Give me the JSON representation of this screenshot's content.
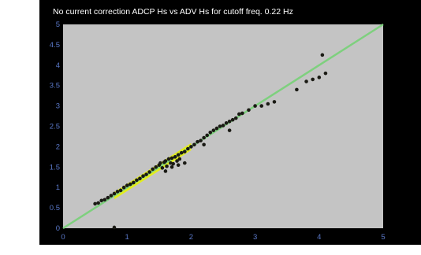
{
  "chart_data": {
    "type": "scatter",
    "title": "No current correction ADCP Hs vs ADV Hs for cutoff freq. 0.22 Hz",
    "xlabel": "",
    "ylabel": "",
    "xlim": [
      0,
      5
    ],
    "ylim": [
      0,
      5
    ],
    "xticks": [
      "0",
      "1",
      "2",
      "3",
      "4",
      "5"
    ],
    "yticks": [
      "0",
      "0.5",
      "1",
      "1.5",
      "2",
      "2.5",
      "3",
      "3.5",
      "4",
      "4.5",
      "5"
    ],
    "grid": false,
    "legend": "none",
    "colors": {
      "figure_background": "#000000",
      "plot_background": "#c4c4c4",
      "reference_line": "#7ed07e",
      "points": "#1a1a14",
      "highlight": "#e8f500",
      "title_text": "#ffffff",
      "tick_text": "#5a78c8"
    },
    "series": [
      {
        "line_kind": "reference y = x",
        "x": [
          0,
          5
        ],
        "y": [
          0,
          5
        ]
      },
      {
        "x": [
          0.5,
          0.55,
          0.6,
          0.65,
          0.7,
          0.75,
          0.8,
          0.85,
          0.9,
          0.95,
          1.0,
          1.05,
          1.1,
          1.15,
          1.2,
          1.25,
          1.3,
          1.35,
          1.4,
          1.45,
          1.5,
          1.52,
          1.55,
          1.58,
          1.6,
          1.62,
          1.65,
          1.68,
          1.7,
          1.72,
          1.75,
          1.78,
          1.8,
          1.82,
          1.85,
          1.9,
          1.95,
          2.0,
          2.05,
          2.1,
          2.15,
          2.2,
          2.25,
          2.3,
          2.35,
          2.4,
          2.45,
          2.5,
          2.55,
          2.6,
          2.65,
          2.7,
          2.75,
          2.8,
          2.9,
          3.0,
          3.1,
          3.2,
          3.3,
          3.65,
          3.8,
          3.9,
          4.0,
          4.05,
          4.1,
          1.6,
          1.7,
          1.8,
          1.9,
          2.2,
          2.6,
          0.8
        ],
        "y": [
          0.6,
          0.62,
          0.68,
          0.7,
          0.75,
          0.8,
          0.85,
          0.9,
          0.93,
          1.0,
          1.05,
          1.08,
          1.12,
          1.18,
          1.22,
          1.28,
          1.32,
          1.38,
          1.45,
          1.5,
          1.55,
          1.6,
          1.48,
          1.62,
          1.65,
          1.52,
          1.7,
          1.6,
          1.72,
          1.58,
          1.75,
          1.65,
          1.8,
          1.7,
          1.85,
          1.88,
          1.95,
          2.0,
          2.05,
          2.12,
          2.15,
          2.22,
          2.28,
          2.35,
          2.4,
          2.45,
          2.5,
          2.52,
          2.58,
          2.62,
          2.66,
          2.7,
          2.8,
          2.82,
          2.9,
          3.0,
          3.0,
          3.05,
          3.1,
          3.4,
          3.6,
          3.65,
          3.7,
          4.25,
          3.8,
          1.4,
          1.5,
          1.55,
          1.6,
          2.05,
          2.4,
          0.02
        ]
      }
    ],
    "highlight_band": {
      "x_from": 0.8,
      "x_to": 2.0,
      "half_width": 0.09
    }
  }
}
